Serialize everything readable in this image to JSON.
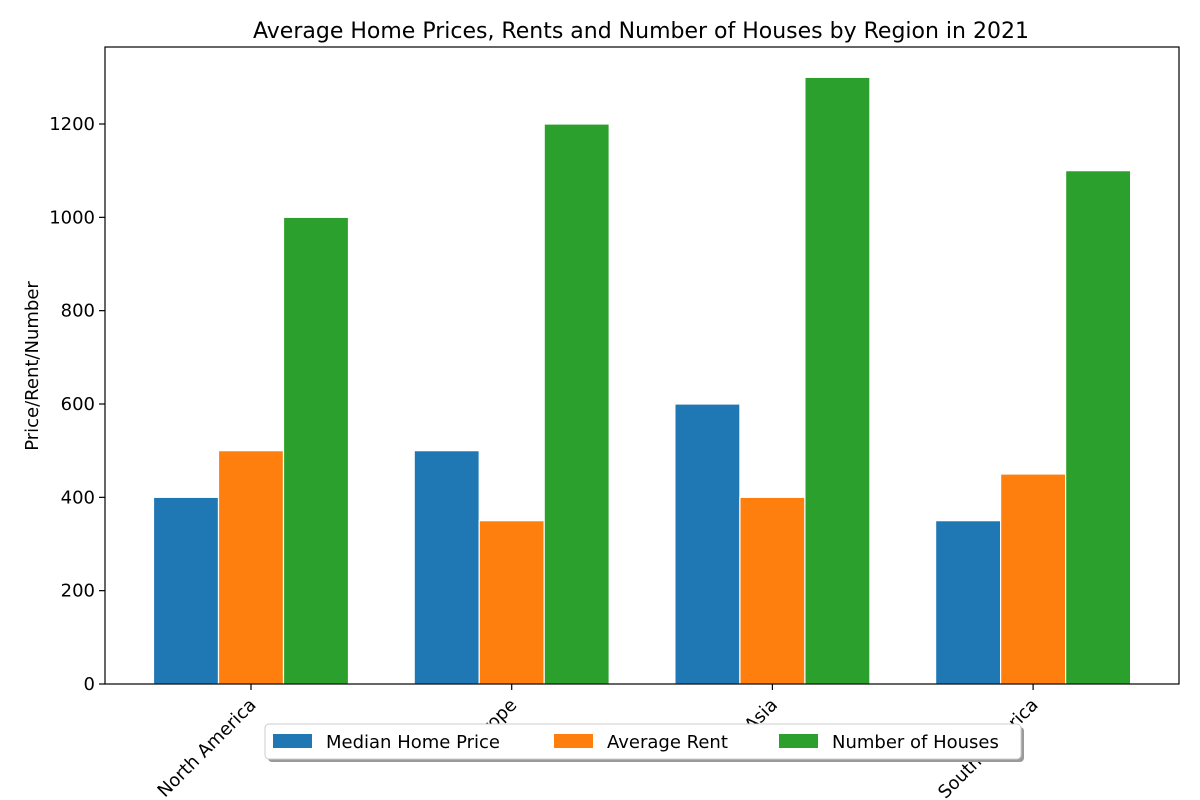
{
  "chart_data": {
    "type": "bar",
    "title": "Average Home Prices, Rents and Number of Houses by Region in 2021",
    "xlabel": "",
    "ylabel": "Price/Rent/Number",
    "categories": [
      "North America",
      "Europe",
      "Asia",
      "South America"
    ],
    "series": [
      {
        "name": "Median Home Price",
        "values": [
          400,
          500,
          600,
          350
        ],
        "color": "#1f77b4"
      },
      {
        "name": "Average Rent",
        "values": [
          500,
          350,
          400,
          450
        ],
        "color": "#ff7f0e"
      },
      {
        "name": "Number of Houses",
        "values": [
          1000,
          1200,
          1300,
          1100
        ],
        "color": "#2ca02c"
      }
    ],
    "ylim": [
      0,
      1365
    ],
    "yticks": [
      0,
      200,
      400,
      600,
      800,
      1000,
      1200
    ],
    "grid": false,
    "legend_position": "bottom-center"
  }
}
